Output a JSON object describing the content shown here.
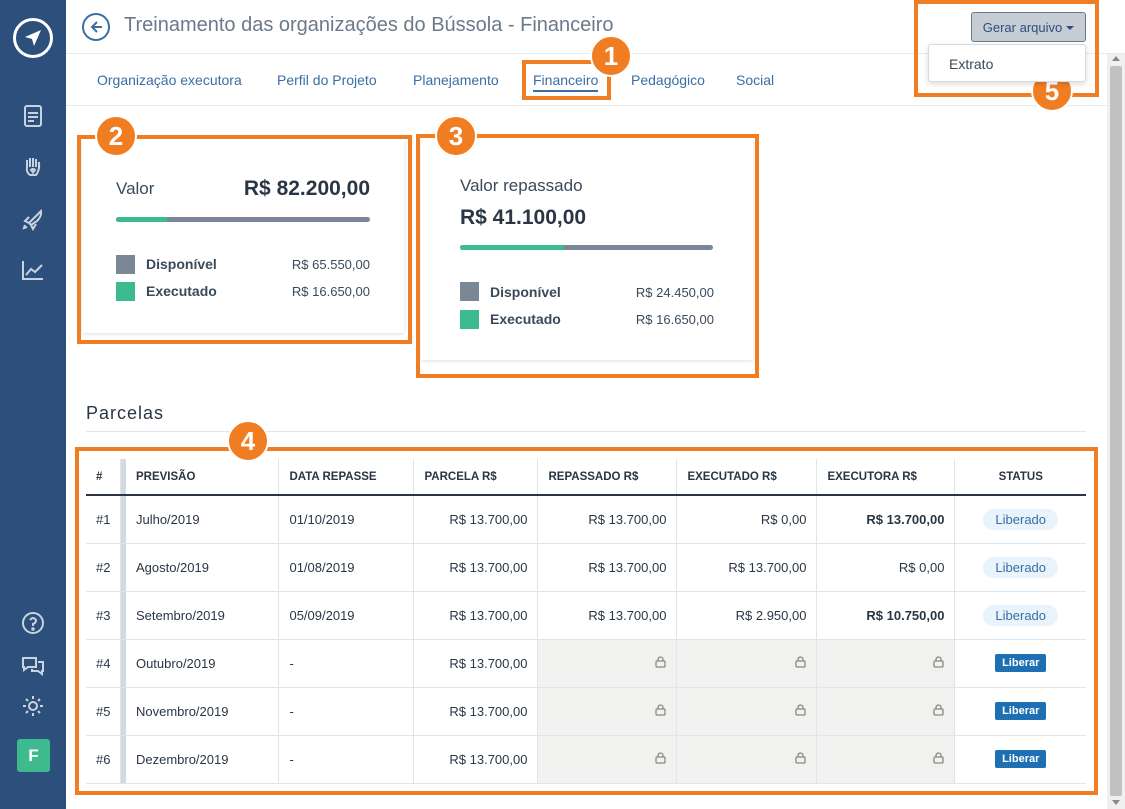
{
  "sidebar": {
    "avatar_letter": "F"
  },
  "header": {
    "title": "Treinamento das organizações do Bússola - Financeiro",
    "generate_button": "Gerar arquivo",
    "dropdown_item": "Extrato"
  },
  "tabs": [
    {
      "label": "Organização executora"
    },
    {
      "label": "Perfil do Projeto"
    },
    {
      "label": "Planejamento"
    },
    {
      "label": "Financeiro"
    },
    {
      "label": "Pedagógico"
    },
    {
      "label": "Social"
    }
  ],
  "card_valor": {
    "label": "Valor",
    "value": "R$ 82.200,00",
    "executed_fraction": 0.2,
    "legend": [
      {
        "label": "Disponível",
        "value": "R$ 65.550,00"
      },
      {
        "label": "Executado",
        "value": "R$ 16.650,00"
      }
    ]
  },
  "card_repassado": {
    "label": "Valor repassado",
    "value": "R$ 41.100,00",
    "executed_fraction": 0.41,
    "legend": [
      {
        "label": "Disponível",
        "value": "R$ 24.450,00"
      },
      {
        "label": "Executado",
        "value": "R$ 16.650,00"
      }
    ]
  },
  "parcelas": {
    "title": "Parcelas",
    "headers": [
      "#",
      "PREVISÃO",
      "DATA REPASSE",
      "PARCELA R$",
      "REPASSADO R$",
      "EXECUTADO R$",
      "EXECUTORA R$",
      "STATUS"
    ],
    "rows": [
      {
        "idx": "#1",
        "previsao": "Julho/2019",
        "data": "01/10/2019",
        "parcela": "R$ 13.700,00",
        "repassado": "R$ 13.700,00",
        "executado": "R$ 0,00",
        "executora": "R$ 13.700,00",
        "status": "Liberado"
      },
      {
        "idx": "#2",
        "previsao": "Agosto/2019",
        "data": "01/08/2019",
        "parcela": "R$ 13.700,00",
        "repassado": "R$ 13.700,00",
        "executado": "R$ 13.700,00",
        "executora": "R$ 0,00",
        "status": "Liberado"
      },
      {
        "idx": "#3",
        "previsao": "Setembro/2019",
        "data": "05/09/2019",
        "parcela": "R$ 13.700,00",
        "repassado": "R$ 13.700,00",
        "executado": "R$ 2.950,00",
        "executora": "R$ 10.750,00",
        "status": "Liberado"
      },
      {
        "idx": "#4",
        "previsao": "Outubro/2019",
        "data": "-",
        "parcela": "R$ 13.700,00",
        "status": "Liberar"
      },
      {
        "idx": "#5",
        "previsao": "Novembro/2019",
        "data": "-",
        "parcela": "R$ 13.700,00",
        "status": "Liberar"
      },
      {
        "idx": "#6",
        "previsao": "Dezembro/2019",
        "data": "-",
        "parcela": "R$ 13.700,00",
        "status": "Liberar"
      }
    ]
  },
  "annotations": [
    "1",
    "2",
    "3",
    "4",
    "5"
  ],
  "colors": {
    "sidebar": "#2d4f7c",
    "accent": "#3a6ea5",
    "executed": "#3dbb8f",
    "available": "#7a8797",
    "negative": "#e06666",
    "annotation": "#f07d22"
  }
}
